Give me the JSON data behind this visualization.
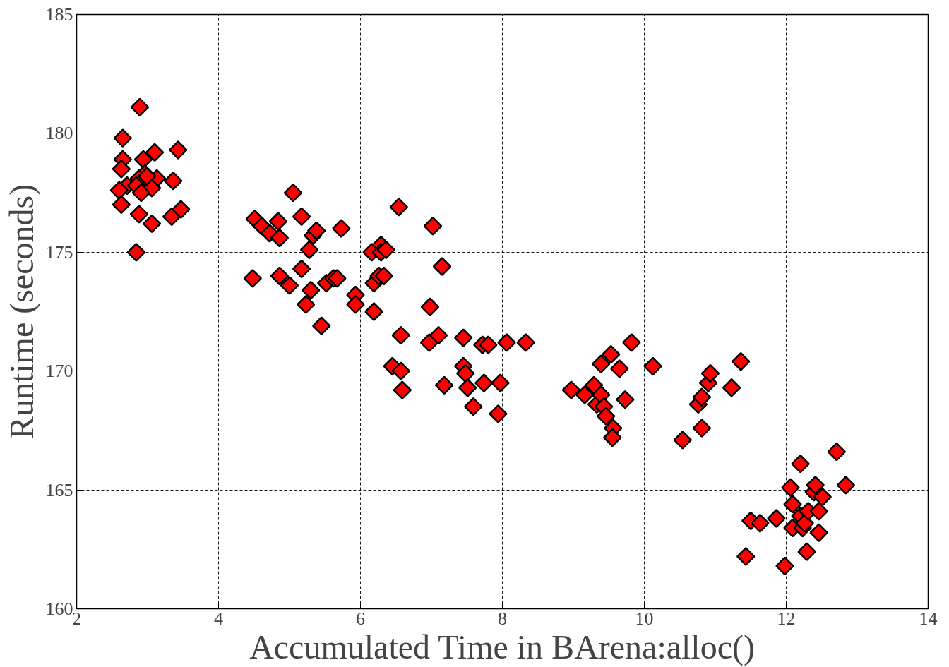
{
  "chart_data": {
    "type": "scatter",
    "xlabel": "Accumulated Time in BArena:alloc()",
    "ylabel": "Runtime (seconds)",
    "xlim": [
      2,
      14
    ],
    "ylim": [
      160,
      185
    ],
    "xticks": [
      2,
      4,
      6,
      8,
      10,
      12,
      14
    ],
    "yticks": [
      160,
      165,
      170,
      175,
      180,
      185
    ],
    "grid": true,
    "marker": "diamond",
    "series": [
      {
        "color": "#ff0000",
        "x": [
          2.89,
          2.65,
          2.65,
          2.94,
          3.1,
          3.43,
          2.63,
          2.96,
          2.88,
          3.13,
          2.71,
          2.6,
          2.84,
          3.06,
          2.91,
          3.36,
          2.63,
          2.88,
          3.06,
          3.34,
          3.47,
          2.84,
          2.99,
          4.48,
          4.51,
          4.61,
          4.72,
          4.84,
          4.86,
          4.86,
          5.0,
          5.05,
          5.17,
          5.17,
          5.23,
          5.28,
          5.3,
          5.33,
          5.38,
          5.45,
          5.52,
          5.62,
          5.67,
          5.73,
          5.93,
          5.93,
          6.16,
          6.19,
          6.19,
          6.26,
          6.29,
          6.29,
          6.33,
          6.36,
          6.45,
          6.54,
          6.57,
          6.57,
          6.59,
          6.97,
          7.02,
          6.98,
          7.1,
          7.15,
          7.18,
          7.45,
          7.45,
          7.48,
          7.51,
          7.59,
          7.72,
          7.8,
          7.74,
          7.97,
          7.94,
          8.06,
          8.33,
          8.97,
          9.16,
          9.29,
          9.33,
          9.39,
          9.43,
          9.46,
          9.39,
          9.53,
          9.56,
          9.55,
          9.65,
          9.73,
          9.82,
          10.12,
          10.54,
          10.76,
          10.81,
          10.81,
          10.9,
          10.93,
          11.23,
          11.36,
          11.43,
          11.5,
          11.63,
          11.86,
          11.98,
          12.06,
          12.09,
          12.09,
          12.2,
          12.2,
          12.23,
          12.26,
          12.31,
          12.29,
          12.39,
          12.41,
          12.46,
          12.46,
          12.51,
          12.71,
          12.84
        ],
        "values": [
          181.1,
          179.8,
          178.9,
          178.9,
          179.2,
          179.3,
          178.5,
          178.3,
          178.1,
          178.1,
          177.8,
          177.6,
          177.8,
          177.7,
          177.5,
          178.0,
          177.0,
          176.6,
          176.2,
          176.5,
          176.8,
          175.0,
          178.2,
          173.9,
          176.4,
          176.1,
          175.8,
          176.3,
          175.6,
          174.0,
          173.6,
          177.5,
          176.5,
          174.3,
          172.8,
          175.1,
          173.4,
          175.7,
          175.9,
          171.9,
          173.7,
          173.9,
          173.9,
          176.0,
          173.2,
          172.8,
          175.0,
          172.5,
          173.7,
          174.0,
          175.3,
          175.0,
          174.0,
          175.1,
          170.2,
          176.9,
          171.5,
          170.0,
          169.2,
          171.2,
          176.1,
          172.7,
          171.5,
          174.4,
          169.4,
          171.4,
          170.2,
          169.9,
          169.3,
          168.5,
          171.1,
          171.1,
          169.5,
          169.5,
          168.2,
          171.2,
          171.2,
          169.2,
          169.0,
          169.4,
          168.6,
          169.0,
          168.5,
          168.1,
          170.3,
          170.7,
          167.6,
          167.2,
          170.1,
          168.8,
          171.2,
          170.2,
          167.1,
          168.6,
          168.9,
          167.6,
          169.5,
          169.9,
          169.3,
          170.4,
          162.2,
          163.7,
          163.6,
          163.8,
          161.8,
          165.1,
          164.4,
          163.4,
          166.1,
          163.9,
          163.4,
          163.6,
          164.1,
          162.4,
          164.9,
          165.2,
          164.1,
          163.2,
          164.7,
          166.6,
          165.2
        ]
      }
    ]
  }
}
